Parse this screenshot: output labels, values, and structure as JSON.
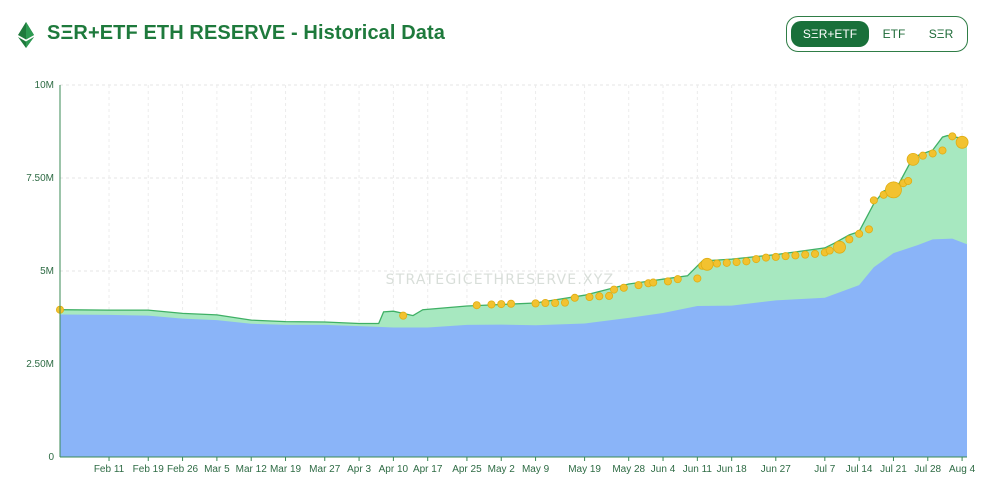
{
  "header": {
    "title": "SΞR+ETF ETH RESERVE - Historical Data",
    "toggle": [
      "SΞR+ETF",
      "ETF",
      "SΞR"
    ],
    "active": "SΞR+ETF"
  },
  "colors": {
    "brand": "#1e7a3c",
    "etf_area": "#8ab4f8",
    "ser_area": "#a7e8c0",
    "ser_line": "#3fb065",
    "marker": "#f2c230"
  },
  "watermark": "STRATEGICETHRESERVE.XYZ",
  "chart_data": {
    "type": "area",
    "y_ticks": [
      "0",
      "2.50M",
      "5M",
      "7.50M",
      "10M"
    ],
    "ylim": [
      0,
      10000000
    ],
    "x_ticks": [
      "Feb 11",
      "Feb 19",
      "Feb 26",
      "Mar 5",
      "Mar 12",
      "Mar 19",
      "Mar 27",
      "Apr 3",
      "Apr 10",
      "Apr 17",
      "Apr 25",
      "May 2",
      "May 9",
      "May 19",
      "May 28",
      "Jun 4",
      "Jun 11",
      "Jun 18",
      "Jun 27",
      "Jul 7",
      "Jul 14",
      "Jul 21",
      "Jul 28",
      "Aug 4"
    ],
    "x_tick_days": [
      10,
      18,
      25,
      32,
      39,
      46,
      54,
      61,
      68,
      75,
      83,
      90,
      97,
      107,
      116,
      123,
      130,
      137,
      146,
      156,
      163,
      170,
      177,
      184
    ],
    "xlim_days": [
      0,
      185
    ],
    "etf_series": [
      [
        0,
        3830000
      ],
      [
        10,
        3820000
      ],
      [
        18,
        3800000
      ],
      [
        25,
        3720000
      ],
      [
        32,
        3680000
      ],
      [
        39,
        3580000
      ],
      [
        46,
        3550000
      ],
      [
        54,
        3550000
      ],
      [
        61,
        3520000
      ],
      [
        68,
        3480000
      ],
      [
        75,
        3480000
      ],
      [
        83,
        3550000
      ],
      [
        90,
        3560000
      ],
      [
        97,
        3540000
      ],
      [
        107,
        3590000
      ],
      [
        116,
        3740000
      ],
      [
        123,
        3870000
      ],
      [
        130,
        4060000
      ],
      [
        137,
        4070000
      ],
      [
        146,
        4210000
      ],
      [
        156,
        4280000
      ],
      [
        163,
        4620000
      ],
      [
        166,
        5100000
      ],
      [
        170,
        5480000
      ],
      [
        175,
        5700000
      ],
      [
        178,
        5850000
      ],
      [
        182,
        5870000
      ],
      [
        185,
        5720000
      ]
    ],
    "total_series": [
      [
        0,
        3960000
      ],
      [
        10,
        3950000
      ],
      [
        18,
        3950000
      ],
      [
        25,
        3860000
      ],
      [
        32,
        3820000
      ],
      [
        39,
        3680000
      ],
      [
        46,
        3640000
      ],
      [
        54,
        3630000
      ],
      [
        61,
        3590000
      ],
      [
        65,
        3590000
      ],
      [
        66,
        3900000
      ],
      [
        68,
        3920000
      ],
      [
        72,
        3800000
      ],
      [
        74,
        3960000
      ],
      [
        83,
        4060000
      ],
      [
        90,
        4100000
      ],
      [
        97,
        4140000
      ],
      [
        107,
        4350000
      ],
      [
        116,
        4650000
      ],
      [
        123,
        4780000
      ],
      [
        128,
        4870000
      ],
      [
        131,
        5270000
      ],
      [
        137,
        5320000
      ],
      [
        146,
        5440000
      ],
      [
        156,
        5620000
      ],
      [
        158,
        5750000
      ],
      [
        161,
        5970000
      ],
      [
        163,
        6060000
      ],
      [
        166,
        6810000
      ],
      [
        168,
        7150000
      ],
      [
        171,
        7320000
      ],
      [
        174,
        8060000
      ],
      [
        178,
        8250000
      ],
      [
        180,
        8600000
      ],
      [
        181,
        8640000
      ],
      [
        185,
        8540000
      ]
    ],
    "markers": [
      [
        0,
        3960000,
        2
      ],
      [
        70,
        3800000,
        2
      ],
      [
        85,
        4080000,
        2
      ],
      [
        88,
        4100000,
        2
      ],
      [
        90,
        4110000,
        2
      ],
      [
        92,
        4120000,
        2
      ],
      [
        97,
        4130000,
        2
      ],
      [
        99,
        4140000,
        2
      ],
      [
        101,
        4140000,
        2
      ],
      [
        103,
        4150000,
        2
      ],
      [
        105,
        4280000,
        2
      ],
      [
        108,
        4300000,
        2
      ],
      [
        110,
        4320000,
        2
      ],
      [
        112,
        4330000,
        2
      ],
      [
        113,
        4500000,
        2
      ],
      [
        115,
        4550000,
        2
      ],
      [
        118,
        4620000,
        2
      ],
      [
        120,
        4670000,
        2
      ],
      [
        121,
        4690000,
        2
      ],
      [
        124,
        4720000,
        2
      ],
      [
        126,
        4780000,
        2
      ],
      [
        130,
        4800000,
        2
      ],
      [
        131,
        5140000,
        2
      ],
      [
        132,
        5180000,
        3
      ],
      [
        134,
        5200000,
        2
      ],
      [
        136,
        5220000,
        2
      ],
      [
        138,
        5240000,
        2
      ],
      [
        140,
        5260000,
        2
      ],
      [
        142,
        5320000,
        2
      ],
      [
        144,
        5360000,
        2
      ],
      [
        146,
        5380000,
        2
      ],
      [
        148,
        5400000,
        2
      ],
      [
        150,
        5420000,
        2
      ],
      [
        152,
        5440000,
        2
      ],
      [
        154,
        5460000,
        2
      ],
      [
        156,
        5500000,
        2
      ],
      [
        157,
        5550000,
        2
      ],
      [
        159,
        5640000,
        3
      ],
      [
        161,
        5850000,
        2
      ],
      [
        163,
        6000000,
        2
      ],
      [
        165,
        6120000,
        2
      ],
      [
        166,
        6900000,
        2
      ],
      [
        168,
        7050000,
        2
      ],
      [
        170,
        7180000,
        4
      ],
      [
        172,
        7360000,
        2
      ],
      [
        173,
        7420000,
        2
      ],
      [
        174,
        8000000,
        3
      ],
      [
        176,
        8100000,
        2
      ],
      [
        178,
        8160000,
        2
      ],
      [
        180,
        8240000,
        2
      ],
      [
        182,
        8620000,
        2
      ],
      [
        184,
        8460000,
        3
      ]
    ]
  }
}
